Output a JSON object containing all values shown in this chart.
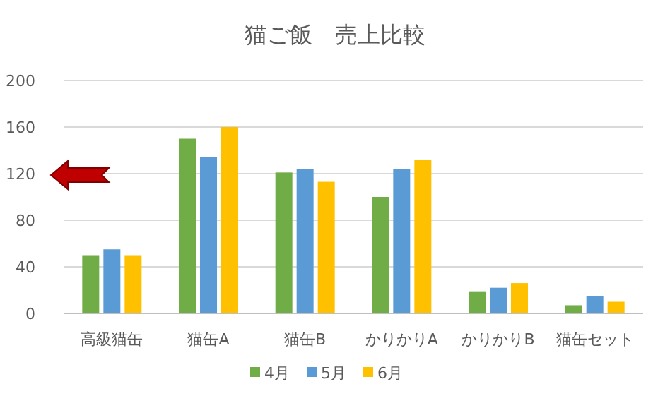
{
  "chart_data": {
    "type": "bar",
    "title": "猫ご飯　売上比較",
    "categories": [
      "高級猫缶",
      "猫缶A",
      "猫缶B",
      "かりかりA",
      "かりかりB",
      "猫缶セット"
    ],
    "series": [
      {
        "name": "4月",
        "color": "#70ad47",
        "values": [
          50,
          150,
          121,
          100,
          19,
          7
        ]
      },
      {
        "name": "5月",
        "color": "#5b9bd5",
        "values": [
          55,
          134,
          124,
          124,
          22,
          15
        ]
      },
      {
        "name": "6月",
        "color": "#ffc000",
        "values": [
          50,
          160,
          113,
          132,
          26,
          10
        ]
      }
    ],
    "ylim": [
      0,
      200
    ],
    "yticks": [
      0,
      40,
      80,
      120,
      160,
      200
    ],
    "grid": "y",
    "legend": "bottom"
  }
}
